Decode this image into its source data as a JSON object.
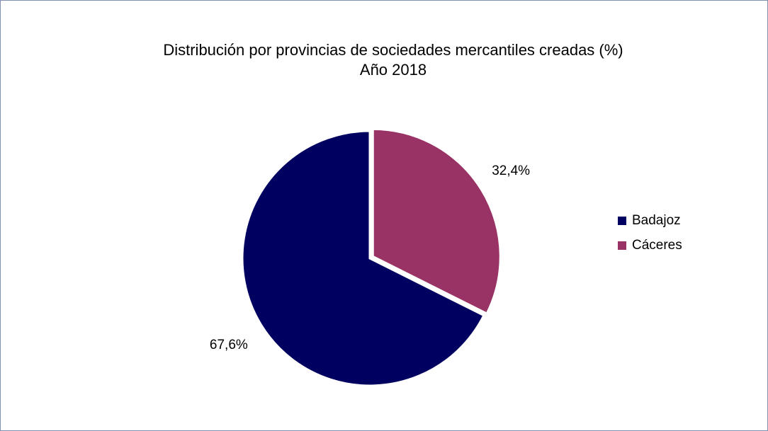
{
  "chart_data": {
    "type": "pie",
    "title": "Distribución por provincias de sociedades mercantiles creadas (%)",
    "subtitle": "Año 2018",
    "categories": [
      "Badajoz",
      "Cáceres"
    ],
    "values": [
      67.6,
      32.4
    ],
    "value_labels": [
      "67,6%",
      "32,4%"
    ],
    "colors": [
      "#000060",
      "#993366"
    ],
    "legend": "right"
  }
}
